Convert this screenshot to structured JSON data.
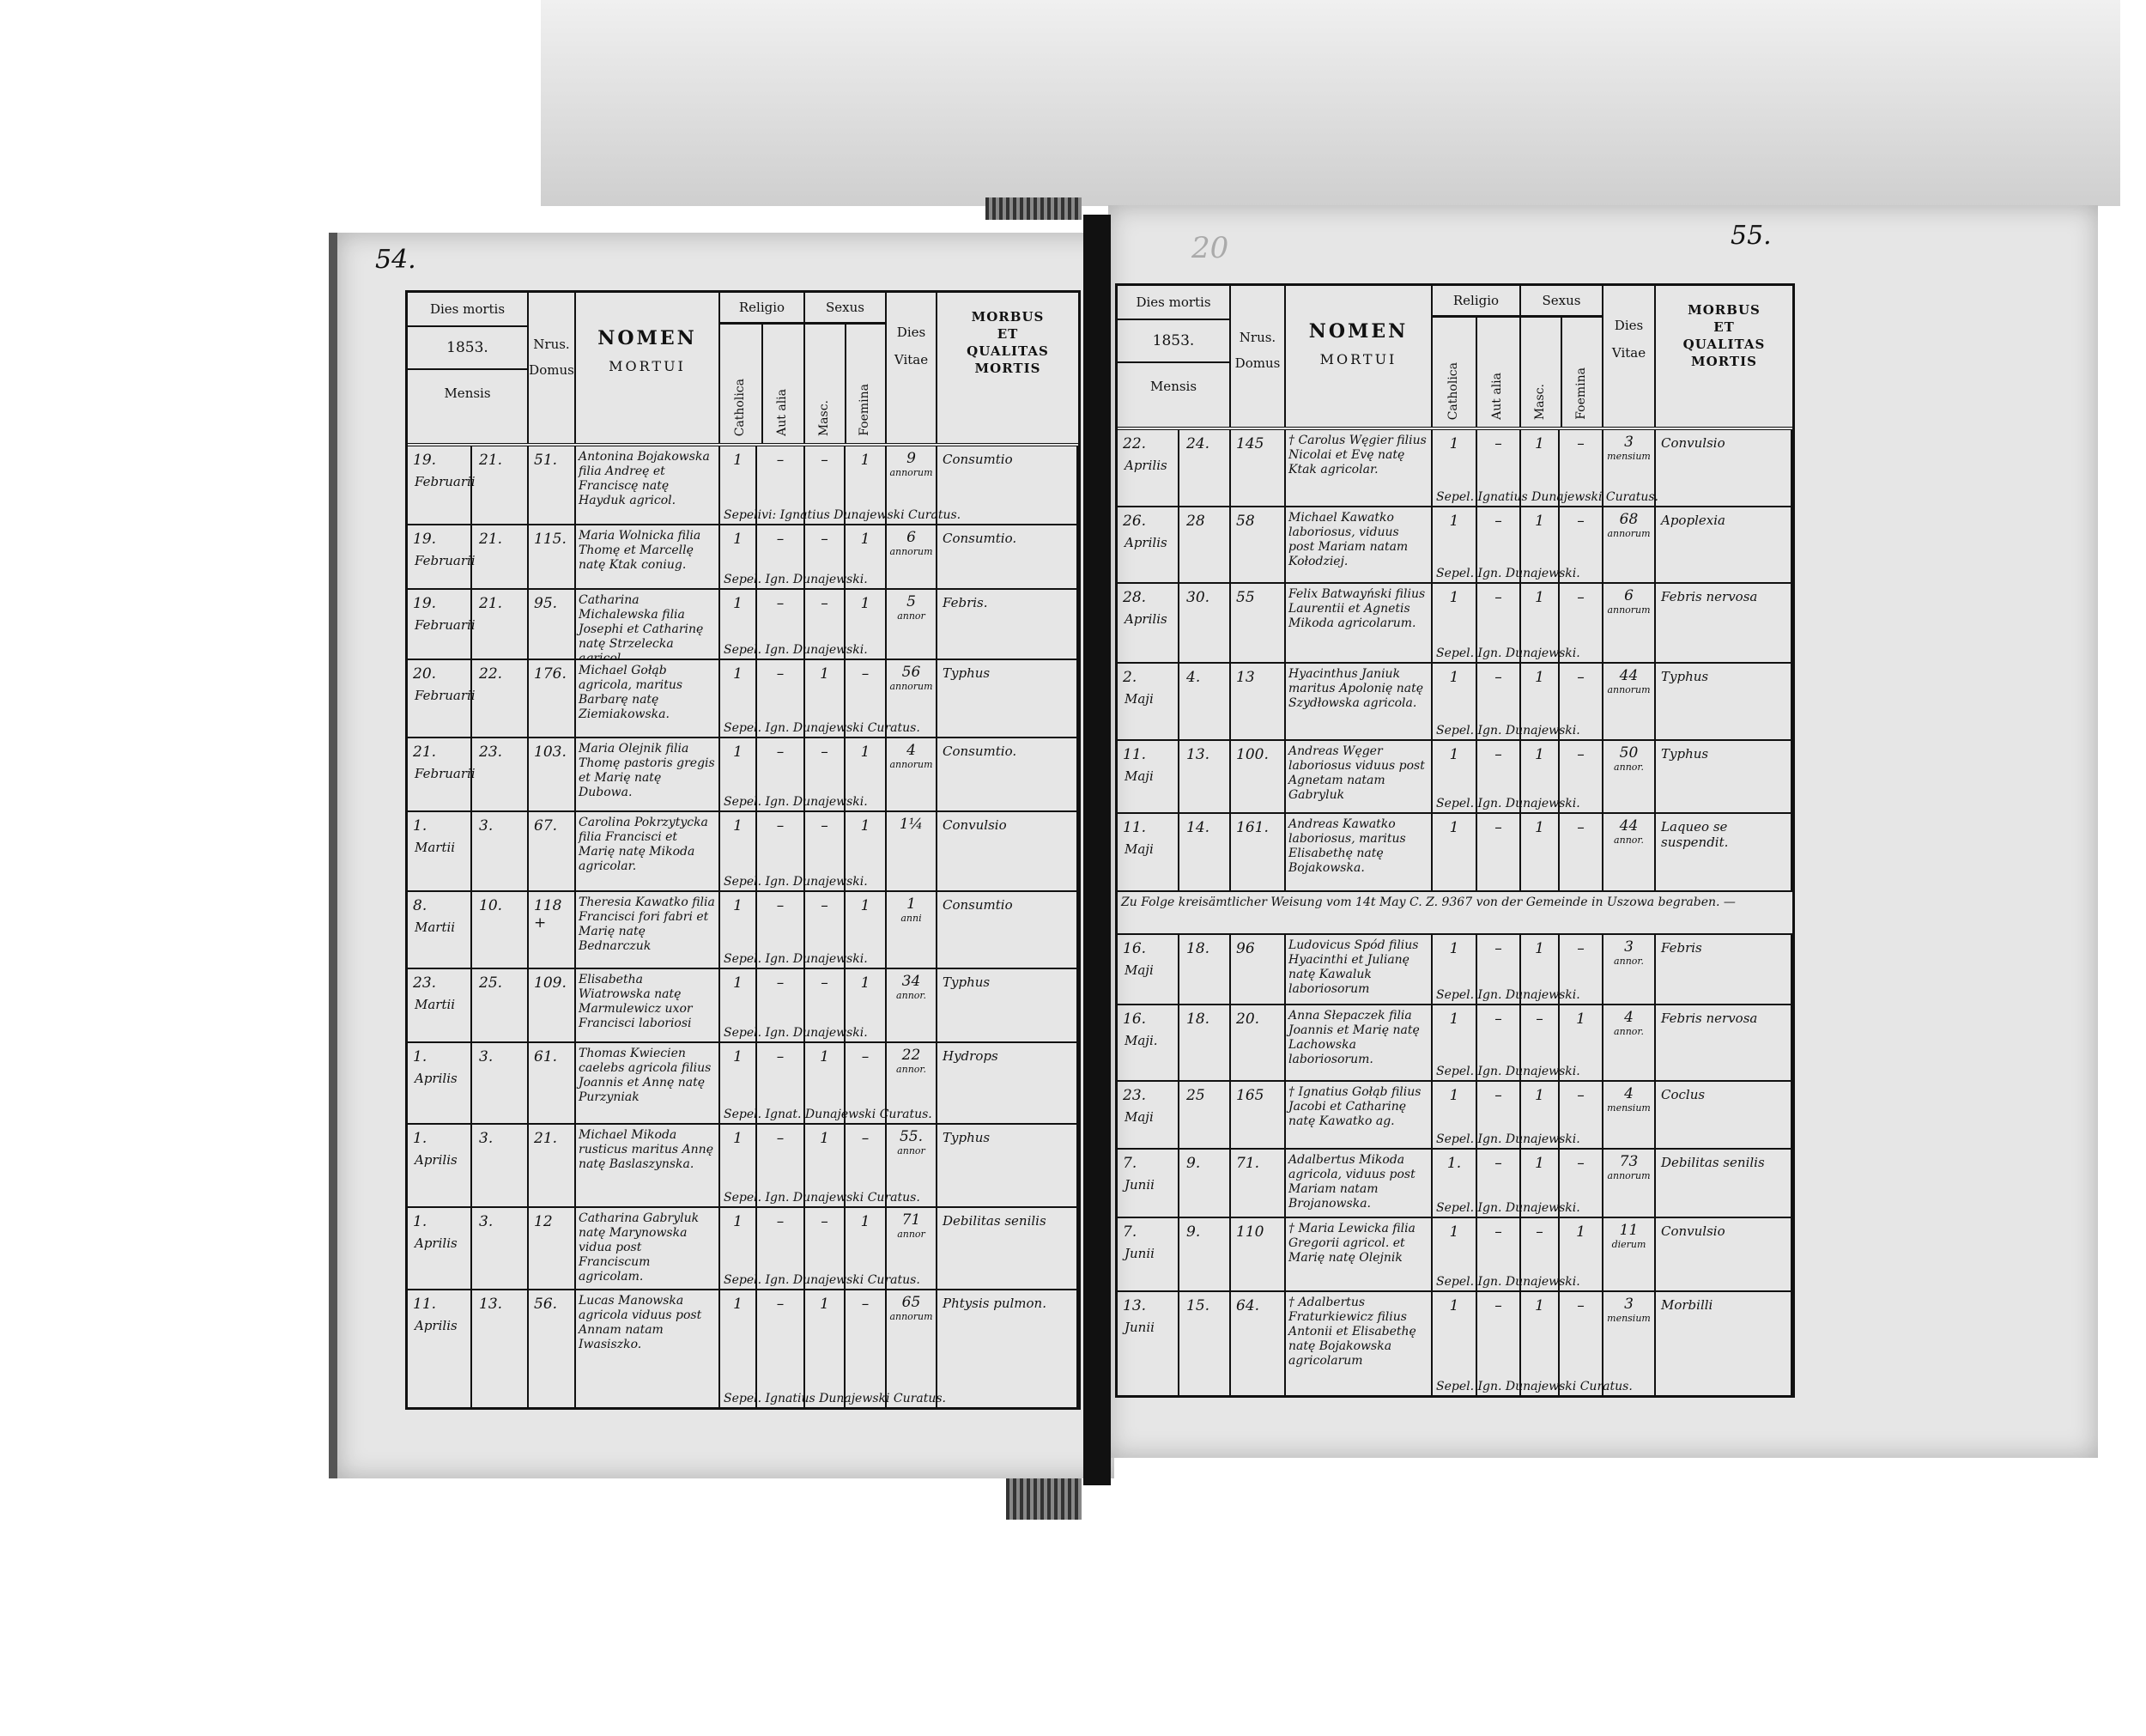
{
  "header": {
    "dies_mortis": "Dies mortis",
    "year": "1853.",
    "mensis": "Mensis",
    "nrus": "Nrus.",
    "domus": "Domus",
    "nomen": "NOMEN",
    "mortui": "MORTUI",
    "religio": "Religio",
    "catholica": "Catholica",
    "aut_alia": "Aut alia",
    "sexus": "Sexus",
    "masc": "Masc.",
    "foemina": "Foemina",
    "dies": "Dies",
    "vitae": "Vitae",
    "morbus": "MORBUS",
    "et": "ET",
    "qualitas": "QUALITAS",
    "mortis": "MORTIS"
  },
  "left": {
    "page_number": "54.",
    "rows": [
      {
        "d1": "19.",
        "d2": "21.",
        "month": "Februarii",
        "domus": "51.",
        "name": "Antonina Bojakowska filia Andreę et Franciscę natę Hayduk agricol.",
        "cath": "1",
        "aut": "–",
        "masc": "–",
        "foem": "1",
        "age": "9",
        "unit": "annorum",
        "morbus": "Consumtio",
        "note": "Sepelivi: Ignatius Dunajewski Curatus."
      },
      {
        "d1": "19.",
        "d2": "21.",
        "month": "Februarii",
        "domus": "115.",
        "name": "Maria Wolnicka filia Thomę et Marcellę natę Ktak coniug.",
        "cath": "1",
        "aut": "–",
        "masc": "–",
        "foem": "1",
        "age": "6",
        "unit": "annorum",
        "morbus": "Consumtio.",
        "note": "Sepel. Ign. Dunajewski."
      },
      {
        "d1": "19.",
        "d2": "21.",
        "month": "Februarii",
        "domus": "95.",
        "name": "Catharina Michalewska filia Josephi et Catharinę natę Strzelecka agricol.",
        "cath": "1",
        "aut": "–",
        "masc": "–",
        "foem": "1",
        "age": "5",
        "unit": "annor",
        "morbus": "Febris.",
        "note": "Sepel. Ign. Dunajewski."
      },
      {
        "d1": "20.",
        "d2": "22.",
        "month": "Februarii",
        "domus": "176.",
        "name": "Michael Gołąb agricola, maritus Barbarę natę Ziemiakowska.",
        "cath": "1",
        "aut": "–",
        "masc": "1",
        "foem": "–",
        "age": "56",
        "unit": "annorum",
        "morbus": "Typhus",
        "note": "Sepel. Ign. Dunajewski Curatus."
      },
      {
        "d1": "21.",
        "d2": "23.",
        "month": "Februarii",
        "domus": "103.",
        "name": "Maria Olejnik filia Thomę pastoris gregis et Marię natę Dubowa.",
        "cath": "1",
        "aut": "–",
        "masc": "–",
        "foem": "1",
        "age": "4",
        "unit": "annorum",
        "morbus": "Consumtio.",
        "note": "Sepel. Ign. Dunajewski."
      },
      {
        "d1": "1.",
        "d2": "3.",
        "month": "Martii",
        "domus": "67.",
        "name": "Carolina Pokrzytycka filia Francisci et Marię natę Mikoda agricolar.",
        "cath": "1",
        "aut": "–",
        "masc": "–",
        "foem": "1",
        "age": "1¼",
        "unit": "",
        "morbus": "Convulsio",
        "note": "Sepel. Ign. Dunajewski."
      },
      {
        "d1": "8.",
        "d2": "10.",
        "month": "Martii",
        "domus": "118 +",
        "name": "Theresia Kawatko filia Francisci fori fabri et Marię natę Bednarczuk",
        "cath": "1",
        "aut": "–",
        "masc": "–",
        "foem": "1",
        "age": "1",
        "unit": "anni",
        "morbus": "Consumtio",
        "note": "Sepel. Ign. Dunajewski."
      },
      {
        "d1": "23.",
        "d2": "25.",
        "month": "Martii",
        "domus": "109.",
        "name": "Elisabetha Wiatrowska natę Marmulewicz uxor Francisci laboriosi",
        "cath": "1",
        "aut": "–",
        "masc": "–",
        "foem": "1",
        "age": "34",
        "unit": "annor.",
        "morbus": "Typhus",
        "note": "Sepel. Ign. Dunajewski."
      },
      {
        "d1": "1.",
        "d2": "3.",
        "month": "Aprilis",
        "domus": "61.",
        "name": "Thomas Kwiecien caelebs agricola filius Joannis et Annę natę Purzyniak",
        "cath": "1",
        "aut": "–",
        "masc": "1",
        "foem": "–",
        "age": "22",
        "unit": "annor.",
        "morbus": "Hydrops",
        "note": "Sepel. Ignat. Dunajewski Curatus."
      },
      {
        "d1": "1.",
        "d2": "3.",
        "month": "Aprilis",
        "domus": "21.",
        "name": "Michael Mikoda rusticus maritus Annę natę Baslaszynska.",
        "cath": "1",
        "aut": "–",
        "masc": "1",
        "foem": "–",
        "age": "55.",
        "unit": "annor",
        "morbus": "Typhus",
        "note": "Sepel. Ign. Dunajewski Curatus."
      },
      {
        "d1": "1.",
        "d2": "3.",
        "month": "Aprilis",
        "domus": "12",
        "name": "Catharina Gabryluk natę Marynowska vidua post Franciscum agricolam.",
        "cath": "1",
        "aut": "–",
        "masc": "–",
        "foem": "1",
        "age": "71",
        "unit": "annor",
        "morbus": "Debilitas senilis",
        "note": "Sepel. Ign. Dunajewski Curatus."
      },
      {
        "d1": "11.",
        "d2": "13.",
        "month": "Aprilis",
        "domus": "56.",
        "name": "Lucas Manowska agricola viduus post Annam natam Iwasiszko.",
        "cath": "1",
        "aut": "–",
        "masc": "1",
        "foem": "–",
        "age": "65",
        "unit": "annorum",
        "morbus": "Phtysis pulmon.",
        "note": "Sepel. Ignatius Dunajewski Curatus."
      }
    ]
  },
  "right": {
    "page_number": "55.",
    "pencil_mark": "20",
    "german_note": "Zu Folge kreisämtlicher Weisung vom 14t May C. Z. 9367 von der Gemeinde in Uszowa begraben. —",
    "rows": [
      {
        "d1": "22.",
        "d2": "24.",
        "month": "Aprilis",
        "domus": "145",
        "name": "† Carolus Węgier filius Nicolai et Evę natę Ktak agricolar.",
        "cath": "1",
        "aut": "–",
        "masc": "1",
        "foem": "–",
        "age": "3",
        "unit": "mensium",
        "morbus": "Convulsio",
        "note": "Sepel. Ignatius Dunajewski Curatus."
      },
      {
        "d1": "26.",
        "d2": "28",
        "month": "Aprilis",
        "domus": "58",
        "name": "Michael Kawatko laboriosus, viduus post Mariam natam Kołodziej.",
        "cath": "1",
        "aut": "–",
        "masc": "1",
        "foem": "–",
        "age": "68",
        "unit": "annorum",
        "morbus": "Apoplexia",
        "note": "Sepel. Ign. Dunajewski."
      },
      {
        "d1": "28.",
        "d2": "30.",
        "month": "Aprilis",
        "domus": "55",
        "name": "Felix Batwayński filius Laurentii et Agnetis Mikoda agricolarum.",
        "cath": "1",
        "aut": "–",
        "masc": "1",
        "foem": "–",
        "age": "6",
        "unit": "annorum",
        "morbus": "Febris nervosa",
        "note": "Sepel. Ign. Dunajewski."
      },
      {
        "d1": "2.",
        "d2": "4.",
        "month": "Maji",
        "domus": "13",
        "name": "Hyacinthus Janiuk maritus Apolonię natę Szydłowska agricola.",
        "cath": "1",
        "aut": "–",
        "masc": "1",
        "foem": "–",
        "age": "44",
        "unit": "annorum",
        "morbus": "Typhus",
        "note": "Sepel. Ign. Dunajewski."
      },
      {
        "d1": "11.",
        "d2": "13.",
        "month": "Maji",
        "domus": "100.",
        "name": "Andreas Węger laboriosus viduus post Agnetam natam Gabryluk",
        "cath": "1",
        "aut": "–",
        "masc": "1",
        "foem": "–",
        "age": "50",
        "unit": "annor.",
        "morbus": "Typhus",
        "note": "Sepel. Ign. Dunajewski."
      },
      {
        "d1": "11.",
        "d2": "14.",
        "month": "Maji",
        "domus": "161.",
        "name": "Andreas Kawatko laboriosus, maritus Elisabethę natę Bojakowska.",
        "cath": "1",
        "aut": "–",
        "masc": "1",
        "foem": "–",
        "age": "44",
        "unit": "annor.",
        "morbus": "Laqueo se suspendit.",
        "note": ""
      },
      {
        "d1": "16.",
        "d2": "18.",
        "month": "Maji",
        "domus": "96",
        "name": "Ludovicus Spód filius Hyacinthi et Julianę natę Kawaluk laboriosorum",
        "cath": "1",
        "aut": "–",
        "masc": "1",
        "foem": "–",
        "age": "3",
        "unit": "annor.",
        "morbus": "Febris",
        "note": "Sepel. Ign. Dunajewski."
      },
      {
        "d1": "16.",
        "d2": "18.",
        "month": "Maji.",
        "domus": "20.",
        "name": "Anna Słepaczek filia Joannis et Marię natę Lachowska laboriosorum.",
        "cath": "1",
        "aut": "–",
        "masc": "–",
        "foem": "1",
        "age": "4",
        "unit": "annor.",
        "morbus": "Febris nervosa",
        "note": "Sepel. Ign. Dunajewski."
      },
      {
        "d1": "23.",
        "d2": "25",
        "month": "Maji",
        "domus": "165",
        "name": "† Ignatius Gołąb filius Jacobi et Catharinę natę Kawatko ag.",
        "cath": "1",
        "aut": "–",
        "masc": "1",
        "foem": "–",
        "age": "4",
        "unit": "mensium",
        "morbus": "Coclus",
        "note": "Sepel. Ign. Dunajewski."
      },
      {
        "d1": "7.",
        "d2": "9.",
        "month": "Junii",
        "domus": "71.",
        "name": "Adalbertus Mikoda agricola, viduus post Mariam natam Brojanowska.",
        "cath": "1.",
        "aut": "–",
        "masc": "1",
        "foem": "–",
        "age": "73",
        "unit": "annorum",
        "morbus": "Debilitas senilis",
        "note": "Sepel. Ign. Dunajewski."
      },
      {
        "d1": "7.",
        "d2": "9.",
        "month": "Junii",
        "domus": "110",
        "name": "† Maria Lewicka filia Gregorii agricol. et Marię natę Olejnik",
        "cath": "1",
        "aut": "–",
        "masc": "–",
        "foem": "1",
        "age": "11",
        "unit": "dierum",
        "morbus": "Convulsio",
        "note": "Sepel. Ign. Dunajewski."
      },
      {
        "d1": "13.",
        "d2": "15.",
        "month": "Junii",
        "domus": "64.",
        "name": "† Adalbertus Fraturkiewicz filius Antonii et Elisabethę natę Bojakowska agricolarum",
        "cath": "1",
        "aut": "–",
        "masc": "1",
        "foem": "–",
        "age": "3",
        "unit": "mensium",
        "morbus": "Morbilli",
        "note": "Sepel. Ign. Dunajewski Curatus."
      }
    ]
  }
}
